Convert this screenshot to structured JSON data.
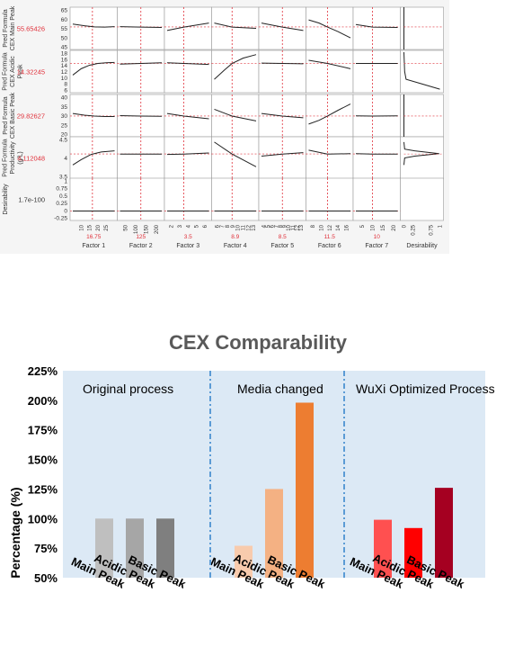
{
  "chart_data": [
    {
      "type": "line",
      "rows": [
        {
          "label_lines": [
            "Pred Formula",
            "CEX Main Peak"
          ],
          "current_value": "55.65426",
          "ticks": [
            "65",
            "60",
            "55",
            "50",
            "45"
          ],
          "ymin": 45,
          "ymax": 65
        },
        {
          "label_lines": [
            "Pred Formula",
            "CEX Acidic",
            "Peak"
          ],
          "current_value": "14.32245",
          "ticks": [
            "18",
            "16",
            "14",
            "12",
            "10",
            "8",
            "6"
          ],
          "ymin": 6,
          "ymax": 18
        },
        {
          "label_lines": [
            "Pred Formula",
            "CEX Basic Peak"
          ],
          "current_value": "29.82627",
          "ticks": [
            "40",
            "35",
            "30",
            "25",
            "20"
          ],
          "ymin": 20,
          "ymax": 40
        },
        {
          "label_lines": [
            "Pred Formula",
            "Productivity",
            "(g/L)"
          ],
          "current_value": "4.112048",
          "ticks": [
            "4.5",
            "4",
            "3.5"
          ],
          "ymin": 3.4,
          "ymax": 4.6
        },
        {
          "label_lines": [
            "Desirability"
          ],
          "current_value": "1.7e-100",
          "ticks": [
            "1",
            "0.75",
            "0.5",
            "0.25",
            "0",
            "-0.25"
          ],
          "ymin": -0.3,
          "ymax": 1.05
        }
      ],
      "factors": [
        {
          "name": "Factor 1",
          "ticks": [
            "10",
            "15",
            "20",
            "25"
          ],
          "current": "16.75",
          "xmin": 5,
          "xmax": 30,
          "x_current": 16.75,
          "curves": [
            [
              [
                5,
                57.0
              ],
              [
                12,
                56.2
              ],
              [
                18,
                55.7
              ],
              [
                24,
                55.6
              ],
              [
                30,
                55.8
              ]
            ],
            [
              [
                5,
                11.0
              ],
              [
                10,
                12.8
              ],
              [
                15,
                13.8
              ],
              [
                20,
                14.3
              ],
              [
                25,
                14.5
              ],
              [
                30,
                14.6
              ]
            ],
            [
              [
                5,
                31.0
              ],
              [
                12,
                30.2
              ],
              [
                18,
                29.8
              ],
              [
                24,
                29.6
              ],
              [
                30,
                29.6
              ]
            ],
            [
              [
                5,
                3.8
              ],
              [
                10,
                3.95
              ],
              [
                16,
                4.1
              ],
              [
                22,
                4.17
              ],
              [
                30,
                4.2
              ]
            ],
            [
              [
                5,
                0
              ],
              [
                30,
                0
              ]
            ]
          ]
        },
        {
          "name": "Factor 2",
          "ticks": [
            "50",
            "100",
            "150",
            "200"
          ],
          "current": "125",
          "xmin": 25,
          "xmax": 225,
          "x_current": 125,
          "curves": [
            [
              [
                25,
                55.8
              ],
              [
                125,
                55.6
              ],
              [
                225,
                55.4
              ]
            ],
            [
              [
                25,
                14.1
              ],
              [
                125,
                14.3
              ],
              [
                225,
                14.5
              ]
            ],
            [
              [
                25,
                30.0
              ],
              [
                125,
                29.8
              ],
              [
                225,
                29.7
              ]
            ],
            [
              [
                25,
                4.11
              ],
              [
                125,
                4.11
              ],
              [
                225,
                4.11
              ]
            ],
            [
              [
                25,
                0
              ],
              [
                225,
                0
              ]
            ]
          ]
        },
        {
          "name": "Factor 3",
          "ticks": [
            "2",
            "3",
            "4",
            "5",
            "6"
          ],
          "current": "3.5",
          "xmin": 1.5,
          "xmax": 6.5,
          "x_current": 3.5,
          "curves": [
            [
              [
                1.5,
                54.0
              ],
              [
                3.5,
                55.6
              ],
              [
                6.5,
                57.5
              ]
            ],
            [
              [
                1.5,
                14.5
              ],
              [
                3.5,
                14.3
              ],
              [
                6.5,
                14.0
              ]
            ],
            [
              [
                1.5,
                31.0
              ],
              [
                3.5,
                29.8
              ],
              [
                6.5,
                28.5
              ]
            ],
            [
              [
                1.5,
                4.1
              ],
              [
                3.5,
                4.11
              ],
              [
                6.5,
                4.14
              ]
            ],
            [
              [
                1.5,
                0
              ],
              [
                6.5,
                0
              ]
            ]
          ]
        },
        {
          "name": "Factor 4",
          "ticks": [
            "6",
            "7",
            "8",
            "9",
            "10",
            "11",
            "12",
            "13"
          ],
          "current": "8.9",
          "xmin": 5.5,
          "xmax": 13.5,
          "x_current": 8.9,
          "curves": [
            [
              [
                5.5,
                57.5
              ],
              [
                8.9,
                55.6
              ],
              [
                13.5,
                55.0
              ]
            ],
            [
              [
                5.5,
                9.8
              ],
              [
                7.5,
                12.5
              ],
              [
                8.9,
                14.3
              ],
              [
                11,
                15.8
              ],
              [
                13.5,
                16.8
              ]
            ],
            [
              [
                5.5,
                33.0
              ],
              [
                8.9,
                29.8
              ],
              [
                13.5,
                27.5
              ]
            ],
            [
              [
                5.5,
                4.45
              ],
              [
                8.9,
                4.11
              ],
              [
                13.5,
                3.75
              ]
            ],
            [
              [
                5.5,
                0
              ],
              [
                13.5,
                0
              ]
            ]
          ]
        },
        {
          "name": "Factor 5",
          "ticks": [
            "4",
            "5",
            "6",
            "7",
            "8",
            "9",
            "10",
            "11",
            "12",
            "13"
          ],
          "current": "8.5",
          "xmin": 3.5,
          "xmax": 13.5,
          "x_current": 8.5,
          "curves": [
            [
              [
                3.5,
                57.5
              ],
              [
                8.5,
                55.6
              ],
              [
                13.5,
                54.0
              ]
            ],
            [
              [
                3.5,
                14.4
              ],
              [
                8.5,
                14.3
              ],
              [
                13.5,
                14.2
              ]
            ],
            [
              [
                3.5,
                31.0
              ],
              [
                8.5,
                29.8
              ],
              [
                13.5,
                29.0
              ]
            ],
            [
              [
                3.5,
                4.05
              ],
              [
                8.5,
                4.11
              ],
              [
                13.5,
                4.15
              ]
            ],
            [
              [
                3.5,
                0
              ],
              [
                13.5,
                0
              ]
            ]
          ]
        },
        {
          "name": "Factor 6",
          "ticks": [
            "8",
            "10",
            "12",
            "14",
            "16"
          ],
          "current": "11.5",
          "xmin": 7,
          "xmax": 17,
          "x_current": 11.5,
          "curves": [
            [
              [
                7,
                59.0
              ],
              [
                9.5,
                57.5
              ],
              [
                11.5,
                55.6
              ],
              [
                14,
                53.5
              ],
              [
                17,
                50.5
              ]
            ],
            [
              [
                7,
                15.2
              ],
              [
                11.5,
                14.3
              ],
              [
                17,
                12.8
              ]
            ],
            [
              [
                7,
                26.0
              ],
              [
                9.5,
                27.8
              ],
              [
                11.5,
                29.8
              ],
              [
                14,
                32.5
              ],
              [
                17,
                35.5
              ]
            ],
            [
              [
                7,
                4.22
              ],
              [
                11.5,
                4.11
              ],
              [
                17,
                4.12
              ]
            ],
            [
              [
                7,
                0
              ],
              [
                17,
                0
              ]
            ]
          ]
        },
        {
          "name": "Factor 7",
          "ticks": [
            "5",
            "10",
            "15",
            "20"
          ],
          "current": "10",
          "xmin": 2,
          "xmax": 22,
          "x_current": 10,
          "curves": [
            [
              [
                2,
                56.8
              ],
              [
                10,
                55.6
              ],
              [
                22,
                55.4
              ]
            ],
            [
              [
                2,
                14.3
              ],
              [
                10,
                14.3
              ],
              [
                22,
                14.3
              ]
            ],
            [
              [
                2,
                29.9
              ],
              [
                10,
                29.8
              ],
              [
                22,
                29.9
              ]
            ],
            [
              [
                2,
                4.12
              ],
              [
                10,
                4.11
              ],
              [
                22,
                4.11
              ]
            ],
            [
              [
                2,
                0
              ],
              [
                22,
                0
              ]
            ]
          ]
        }
      ],
      "desirability": {
        "name": "Desirability",
        "ticks": [
          "0",
          "0.25",
          "0.75",
          "1"
        ]
      }
    },
    {
      "type": "bar",
      "title": "CEX Comparability",
      "ylabel": "Percentage (%)",
      "ylim": [
        50,
        225
      ],
      "yticks": [
        "225%",
        "200%",
        "175%",
        "150%",
        "125%",
        "100%",
        "75%",
        "50%"
      ],
      "groups": [
        {
          "label": "Original process",
          "bars": [
            {
              "label": "Main Peak",
              "value": 100,
              "color": "#bfbfbf"
            },
            {
              "label": "Acidic Peak",
              "value": 100,
              "color": "#a6a6a6"
            },
            {
              "label": "Basic Peak",
              "value": 100,
              "color": "#7f7f7f"
            }
          ]
        },
        {
          "label": "Media changed",
          "bars": [
            {
              "label": "Main Peak",
              "value": 77,
              "color": "#f8cbad"
            },
            {
              "label": "Acidic Peak",
              "value": 125,
              "color": "#f4b183"
            },
            {
              "label": "Basic Peak",
              "value": 198,
              "color": "#ed7d31"
            }
          ]
        },
        {
          "label": "WuXi Optimized Process",
          "bars": [
            {
              "label": "Main Peak",
              "value": 99,
              "color": "#ff5050"
            },
            {
              "label": "Acidic Peak",
              "value": 92,
              "color": "#ff0000"
            },
            {
              "label": "Basic Peak",
              "value": 126,
              "color": "#a50021"
            }
          ]
        }
      ],
      "colors": {
        "panel": "#dce9f5",
        "separator": "#5b9bd5"
      }
    }
  ]
}
